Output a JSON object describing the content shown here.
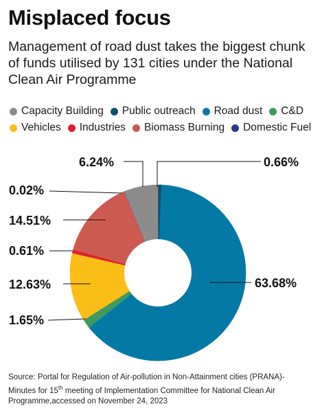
{
  "header": {
    "title": "Misplaced focus",
    "subtitle": "Management of road dust takes the biggest chunk of funds utilised by 131 cities under the National Clean Air Programme"
  },
  "chart_data": {
    "type": "pie",
    "donut": true,
    "legend_placement": "top",
    "legend": [
      {
        "name": "Capacity Building",
        "color": "#8c8c8c"
      },
      {
        "name": "Public outreach",
        "color": "#0f4e6e"
      },
      {
        "name": "Road dust",
        "color": "#0579a6"
      },
      {
        "name": "C&D",
        "color": "#3f9a62"
      },
      {
        "name": "Vehicles",
        "color": "#fbbe16"
      },
      {
        "name": "Industries",
        "color": "#e01f2d"
      },
      {
        "name": "Biomass Burning",
        "color": "#cd5a51"
      },
      {
        "name": "Domestic Fuel",
        "color": "#2b3a8f"
      }
    ],
    "slices": [
      {
        "name": "Public outreach",
        "value": 0.66,
        "label": "0.66%",
        "color": "#0f4e6e"
      },
      {
        "name": "Road dust",
        "value": 63.68,
        "label": "63.68%",
        "color": "#0579a6"
      },
      {
        "name": "C&D",
        "value": 1.65,
        "label": "1.65%",
        "color": "#3f9a62"
      },
      {
        "name": "Vehicles",
        "value": 12.63,
        "label": "12.63%",
        "color": "#fbbe16"
      },
      {
        "name": "Industries",
        "value": 0.61,
        "label": "0.61%",
        "color": "#e01f2d"
      },
      {
        "name": "Biomass Burning",
        "value": 14.51,
        "label": "14.51%",
        "color": "#cd5a51"
      },
      {
        "name": "Domestic Fuel",
        "value": 0.02,
        "label": "0.02%",
        "color": "#2b3a8f"
      },
      {
        "name": "Capacity Building",
        "value": 6.24,
        "label": "6.24%",
        "color": "#8c8c8c"
      }
    ]
  },
  "source": {
    "line1": "Source: Portal for Regulation of Air-pollution in Non-Attainment cities (PRANA)-",
    "line2_pre": "Minutes for 15",
    "line2_sup": "th",
    "line2_post": " meeting of Implementation Committee for National Clean Air",
    "line3": "Programme,accessed on November 24, 2023"
  }
}
